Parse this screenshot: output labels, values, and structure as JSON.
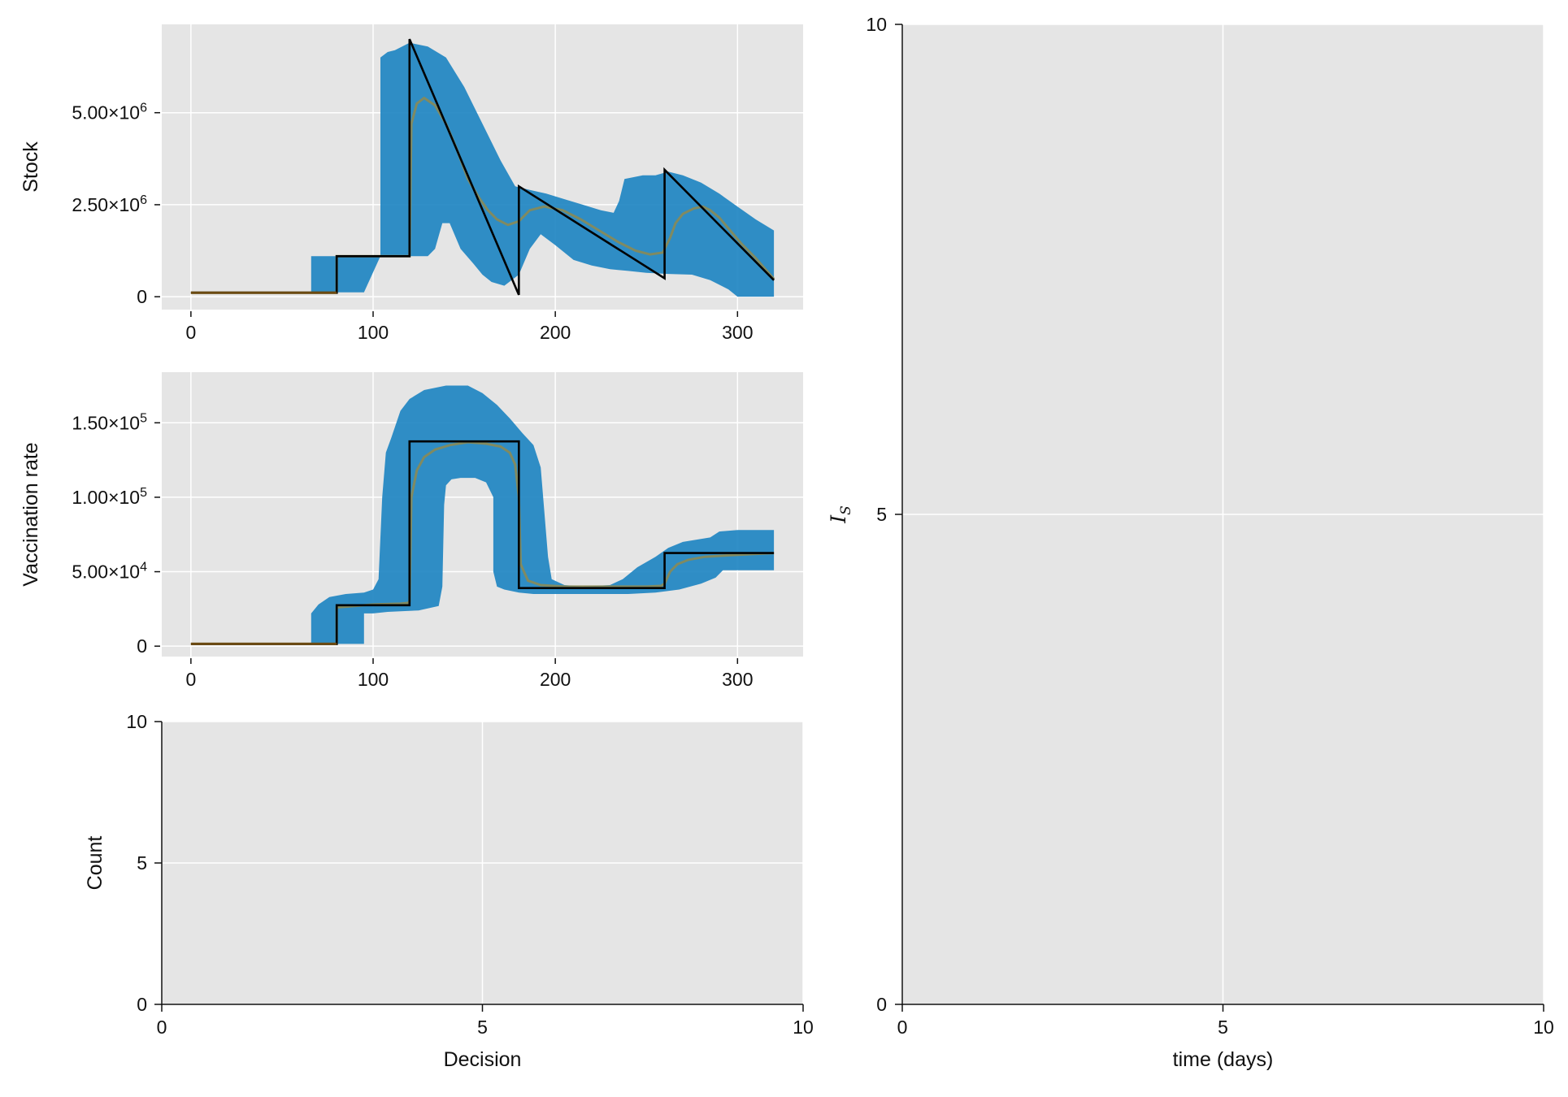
{
  "chart_data": [
    {
      "id": "stock",
      "type": "area",
      "xlabel": "",
      "ylabel": "Stock",
      "xlim": [
        -16,
        336
      ],
      "ylim": [
        -350000,
        7400000
      ],
      "xticks": [
        0,
        100,
        200,
        300
      ],
      "xtick_labels": [
        "0",
        "100",
        "200",
        "300"
      ],
      "yticks": [
        0,
        2500000,
        5000000
      ],
      "ytick_labels": [
        {
          "base": "0",
          "exp": ""
        },
        {
          "base": "2.50×10",
          "exp": "6"
        },
        {
          "base": "5.00×10",
          "exp": "6"
        }
      ],
      "grid": true,
      "colors": {
        "band": "#1f86c2",
        "median": "#8a8a55",
        "decision": "#000000",
        "decision_early": "#6b4a12"
      },
      "series": [
        {
          "role": "band",
          "upper": [
            [
              66,
              1100000
            ],
            [
              95,
              1100000
            ],
            [
              95,
              1100000
            ],
            [
              104,
              1100000
            ],
            [
              104,
              6500000
            ],
            [
              108,
              6650000
            ],
            [
              112,
              6700000
            ],
            [
              120,
              6900000
            ],
            [
              130,
              6800000
            ],
            [
              140,
              6500000
            ],
            [
              150,
              5700000
            ],
            [
              160,
              4700000
            ],
            [
              170,
              3700000
            ],
            [
              178,
              3000000
            ],
            [
              186,
              2900000
            ],
            [
              195,
              2800000
            ],
            [
              205,
              2650000
            ],
            [
              215,
              2500000
            ],
            [
              225,
              2350000
            ],
            [
              232,
              2280000
            ],
            [
              235,
              2600000
            ],
            [
              238,
              3200000
            ],
            [
              248,
              3300000
            ],
            [
              255,
              3300000
            ],
            [
              262,
              3400000
            ],
            [
              270,
              3300000
            ],
            [
              280,
              3100000
            ],
            [
              290,
              2800000
            ],
            [
              300,
              2450000
            ],
            [
              310,
              2100000
            ],
            [
              320,
              1800000
            ]
          ],
          "lower": [
            [
              320,
              0
            ],
            [
              300,
              0
            ],
            [
              295,
              200000
            ],
            [
              285,
              450000
            ],
            [
              275,
              600000
            ],
            [
              262,
              620000
            ],
            [
              250,
              650000
            ],
            [
              240,
              700000
            ],
            [
              230,
              750000
            ],
            [
              220,
              850000
            ],
            [
              210,
              1000000
            ],
            [
              200,
              1400000
            ],
            [
              192,
              1700000
            ],
            [
              186,
              1300000
            ],
            [
              180,
              600000
            ],
            [
              172,
              300000
            ],
            [
              165,
              400000
            ],
            [
              160,
              600000
            ],
            [
              155,
              900000
            ],
            [
              148,
              1300000
            ],
            [
              142,
              2000000
            ],
            [
              138,
              2000000
            ],
            [
              134,
              1300000
            ],
            [
              130,
              1100000
            ],
            [
              104,
              1100000
            ],
            [
              95,
              120000
            ],
            [
              66,
              120000
            ]
          ]
        },
        {
          "role": "median",
          "points": [
            [
              0,
              110000
            ],
            [
              80,
              110000
            ],
            [
              80,
              1100000
            ],
            [
              120,
              1100000
            ],
            [
              121,
              4700000
            ],
            [
              124,
              5250000
            ],
            [
              128,
              5400000
            ],
            [
              134,
              5200000
            ],
            [
              140,
              4700000
            ],
            [
              146,
              4000000
            ],
            [
              152,
              3200000
            ],
            [
              158,
              2700000
            ],
            [
              163,
              2350000
            ],
            [
              168,
              2100000
            ],
            [
              174,
              1950000
            ],
            [
              180,
              2050000
            ],
            [
              186,
              2350000
            ],
            [
              194,
              2450000
            ],
            [
              204,
              2350000
            ],
            [
              214,
              2100000
            ],
            [
              224,
              1800000
            ],
            [
              234,
              1500000
            ],
            [
              244,
              1250000
            ],
            [
              252,
              1150000
            ],
            [
              259,
              1200000
            ],
            [
              263,
              1600000
            ],
            [
              266,
              2000000
            ],
            [
              270,
              2250000
            ],
            [
              276,
              2400000
            ],
            [
              281,
              2450000
            ],
            [
              285,
              2350000
            ],
            [
              290,
              2150000
            ],
            [
              296,
              1800000
            ],
            [
              302,
              1450000
            ],
            [
              310,
              1050000
            ],
            [
              320,
              480000
            ]
          ]
        },
        {
          "role": "decision",
          "points": [
            [
              0,
              110000
            ],
            [
              80,
              110000
            ],
            [
              80,
              1100000
            ],
            [
              120,
              1100000
            ],
            [
              120,
              7000000
            ],
            [
              180,
              50000
            ],
            [
              180,
              3000000
            ],
            [
              260,
              500000
            ],
            [
              260,
              3450000
            ],
            [
              320,
              450000
            ]
          ]
        }
      ]
    },
    {
      "id": "vaccination",
      "type": "area",
      "xlabel": "",
      "ylabel": "Vaccination rate",
      "xlim": [
        -16,
        336
      ],
      "ylim": [
        -7000,
        184000
      ],
      "xticks": [
        0,
        100,
        200,
        300
      ],
      "xtick_labels": [
        "0",
        "100",
        "200",
        "300"
      ],
      "yticks": [
        0,
        50000,
        100000,
        150000
      ],
      "ytick_labels": [
        {
          "base": "0",
          "exp": ""
        },
        {
          "base": "5.00×10",
          "exp": "4"
        },
        {
          "base": "1.00×10",
          "exp": "5"
        },
        {
          "base": "1.50×10",
          "exp": "5"
        }
      ],
      "grid": true,
      "colors": {
        "band": "#1f86c2",
        "median": "#8a8a55",
        "decision": "#000000",
        "decision_early": "#6b4a12"
      },
      "series": [
        {
          "role": "band",
          "upper": [
            [
              66,
              22000
            ],
            [
              70,
              28000
            ],
            [
              76,
              33000
            ],
            [
              85,
              35000
            ],
            [
              95,
              36000
            ],
            [
              100,
              38000
            ],
            [
              103,
              45000
            ],
            [
              105,
              100000
            ],
            [
              107,
              130000
            ],
            [
              110,
              140000
            ],
            [
              115,
              158000
            ],
            [
              120,
              166000
            ],
            [
              128,
              172000
            ],
            [
              140,
              175000
            ],
            [
              152,
              175000
            ],
            [
              160,
              170000
            ],
            [
              168,
              162000
            ],
            [
              175,
              153000
            ],
            [
              182,
              143000
            ],
            [
              188,
              135000
            ],
            [
              192,
              120000
            ],
            [
              194,
              90000
            ],
            [
              196,
              60000
            ],
            [
              198,
              45000
            ],
            [
              205,
              41000
            ],
            [
              215,
              40000
            ],
            [
              230,
              41000
            ],
            [
              237,
              45000
            ],
            [
              245,
              53000
            ],
            [
              255,
              60000
            ],
            [
              262,
              66000
            ],
            [
              270,
              70000
            ],
            [
              285,
              73000
            ],
            [
              290,
              77000
            ],
            [
              300,
              78000
            ],
            [
              320,
              78000
            ]
          ],
          "lower": [
            [
              320,
              51000
            ],
            [
              292,
              51000
            ],
            [
              288,
              46000
            ],
            [
              280,
              42000
            ],
            [
              268,
              38000
            ],
            [
              255,
              36000
            ],
            [
              240,
              35000
            ],
            [
              220,
              35000
            ],
            [
              200,
              35000
            ],
            [
              188,
              35000
            ],
            [
              180,
              36000
            ],
            [
              172,
              38000
            ],
            [
              168,
              40000
            ],
            [
              166,
              50000
            ],
            [
              166,
              100000
            ],
            [
              162,
              110000
            ],
            [
              156,
              113000
            ],
            [
              148,
              113000
            ],
            [
              143,
              112000
            ],
            [
              140,
              108000
            ],
            [
              139,
              95000
            ],
            [
              138,
              40000
            ],
            [
              136,
              27000
            ],
            [
              125,
              24000
            ],
            [
              108,
              23000
            ],
            [
              100,
              22000
            ],
            [
              95,
              22000
            ],
            [
              95,
              1500
            ],
            [
              66,
              1500
            ]
          ]
        },
        {
          "role": "median",
          "points": [
            [
              0,
              1500
            ],
            [
              80,
              1500
            ],
            [
              80,
              26000
            ],
            [
              90,
              27000
            ],
            [
              100,
              28000
            ],
            [
              115,
              28500
            ],
            [
              119,
              29000
            ],
            [
              120,
              30000
            ],
            [
              121,
              100000
            ],
            [
              124,
              118000
            ],
            [
              128,
              127000
            ],
            [
              134,
              132000
            ],
            [
              142,
              135000
            ],
            [
              152,
              137000
            ],
            [
              162,
              136000
            ],
            [
              170,
              134000
            ],
            [
              175,
              130000
            ],
            [
              178,
              122000
            ],
            [
              180,
              100000
            ],
            [
              181,
              55000
            ],
            [
              185,
              44000
            ],
            [
              192,
              41000
            ],
            [
              205,
              40000
            ],
            [
              230,
              40000
            ],
            [
              250,
              40000
            ],
            [
              258,
              40500
            ],
            [
              260,
              42000
            ],
            [
              263,
              50000
            ],
            [
              267,
              55000
            ],
            [
              273,
              58000
            ],
            [
              282,
              60000
            ],
            [
              295,
              61000
            ],
            [
              310,
              62000
            ],
            [
              320,
              62500
            ]
          ]
        },
        {
          "role": "decision",
          "points": [
            [
              0,
              1500
            ],
            [
              80,
              1500
            ],
            [
              80,
              27500
            ],
            [
              120,
              27500
            ],
            [
              120,
              137500
            ],
            [
              180,
              137500
            ],
            [
              180,
              39000
            ],
            [
              260,
              39000
            ],
            [
              260,
              62500
            ],
            [
              320,
              62500
            ]
          ]
        }
      ]
    },
    {
      "id": "count",
      "type": "bar",
      "xlabel": "Decision",
      "ylabel": "Count",
      "xlim": [
        0,
        10
      ],
      "ylim": [
        0,
        10
      ],
      "xticks": [
        0,
        5,
        10
      ],
      "xtick_labels": [
        "0",
        "5",
        "10"
      ],
      "yticks": [
        0,
        5,
        10
      ],
      "ytick_labels": [
        {
          "base": "0",
          "exp": ""
        },
        {
          "base": "5",
          "exp": ""
        },
        {
          "base": "10",
          "exp": ""
        }
      ],
      "grid": true,
      "series": []
    },
    {
      "id": "infections",
      "type": "line",
      "xlabel": "time (days)",
      "ylabel": {
        "base": "I",
        "sub": "S"
      },
      "xlim": [
        0,
        10
      ],
      "ylim": [
        0,
        10
      ],
      "xticks": [
        0,
        5,
        10
      ],
      "xtick_labels": [
        "0",
        "5",
        "10"
      ],
      "yticks": [
        0,
        5,
        10
      ],
      "ytick_labels": [
        {
          "base": "0",
          "exp": ""
        },
        {
          "base": "5",
          "exp": ""
        },
        {
          "base": "10",
          "exp": ""
        }
      ],
      "grid": true,
      "series": []
    }
  ]
}
